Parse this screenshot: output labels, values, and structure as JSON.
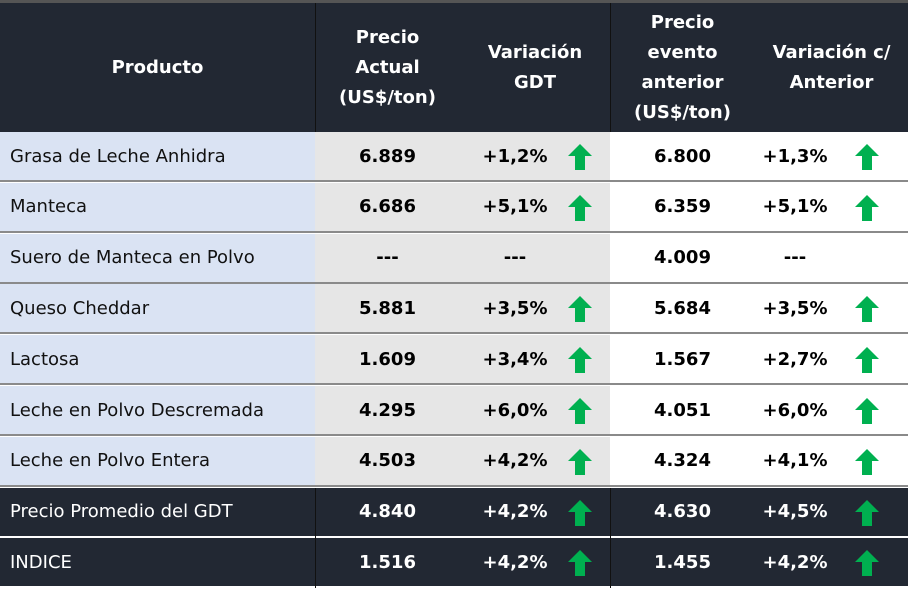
{
  "headers": [
    "Producto",
    "Precio\nActual\n(US$/ton)",
    "Variación\nGDT",
    "Precio\nevento\nanterior\n(US$/ton)",
    "Variación c/\nAnterior"
  ],
  "colors": {
    "header_bg": "#222833",
    "product_bg": "#dae3f3",
    "current_bg": "#e6e6e6",
    "up_arrow": "#00b050"
  },
  "rows": [
    {
      "product": "Grasa de Leche Anhidra",
      "price": "6.889",
      "var": "+1,2%",
      "var_icon": "up-arrow",
      "prev": "6.800",
      "var_prev": "+1,3%",
      "var_prev_icon": "up-arrow"
    },
    {
      "product": "Manteca",
      "price": "6.686",
      "var": "+5,1%",
      "var_icon": "up-arrow",
      "prev": "6.359",
      "var_prev": "+5,1%",
      "var_prev_icon": "up-arrow"
    },
    {
      "product": "Suero de Manteca en Polvo",
      "price": "---",
      "var": "---",
      "var_icon": "",
      "prev": "4.009",
      "var_prev": "---",
      "var_prev_icon": ""
    },
    {
      "product": "Queso Cheddar",
      "price": "5.881",
      "var": "+3,5%",
      "var_icon": "up-arrow",
      "prev": "5.684",
      "var_prev": "+3,5%",
      "var_prev_icon": "up-arrow"
    },
    {
      "product": "Lactosa",
      "price": "1.609",
      "var": "+3,4%",
      "var_icon": "up-arrow",
      "prev": "1.567",
      "var_prev": "+2,7%",
      "var_prev_icon": "up-arrow"
    },
    {
      "product": "Leche en Polvo Descremada",
      "price": "4.295",
      "var": "+6,0%",
      "var_icon": "up-arrow",
      "prev": "4.051",
      "var_prev": "+6,0%",
      "var_prev_icon": "up-arrow"
    },
    {
      "product": "Leche en Polvo Entera",
      "price": "4.503",
      "var": "+4,2%",
      "var_icon": "up-arrow",
      "prev": "4.324",
      "var_prev": "+4,1%",
      "var_prev_icon": "up-arrow"
    },
    {
      "product": "Precio Promedio del GDT",
      "price": "4.840",
      "var": "+4,2%",
      "var_icon": "up-arrow",
      "prev": "4.630",
      "var_prev": "+4,5%",
      "var_prev_icon": "up-arrow"
    },
    {
      "product": "INDICE",
      "price": "1.516",
      "var": "+4,2%",
      "var_icon": "up-arrow",
      "prev": "1.455",
      "var_prev": "+4,2%",
      "var_prev_icon": "up-arrow"
    }
  ]
}
